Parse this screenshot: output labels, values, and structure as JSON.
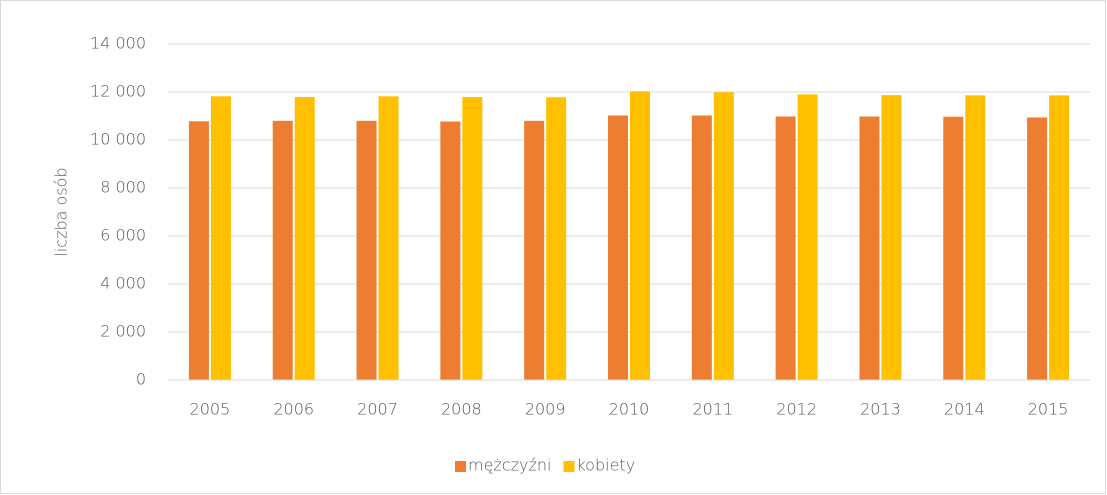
{
  "chart_data": {
    "type": "bar",
    "y_label": "liczba osób",
    "categories": [
      "2005",
      "2006",
      "2007",
      "2008",
      "2009",
      "2010",
      "2011",
      "2012",
      "2013",
      "2014",
      "2015"
    ],
    "series": [
      {
        "name": "mężczyźni",
        "color": "#ed7d31",
        "values": [
          10780,
          10800,
          10800,
          10770,
          10800,
          11020,
          11020,
          10980,
          10980,
          10970,
          10940
        ]
      },
      {
        "name": "kobiety",
        "color": "#ffc000",
        "values": [
          11820,
          11790,
          11820,
          11790,
          11780,
          12030,
          11990,
          11900,
          11870,
          11860,
          11860
        ]
      }
    ],
    "ylim": [
      0,
      14000
    ],
    "yticks": [
      0,
      {
        "value": 2000,
        "label": "2 000"
      },
      {
        "value": 4000,
        "label": "4 000"
      },
      {
        "value": 6000,
        "label": "6 000"
      },
      {
        "value": 8000,
        "label": "8 000"
      },
      {
        "value": 10000,
        "label": "10 000"
      },
      {
        "value": 12000,
        "label": "12 000"
      },
      {
        "value": 14000,
        "label": "14 000"
      }
    ],
    "grid": true,
    "legend": "bottom"
  }
}
